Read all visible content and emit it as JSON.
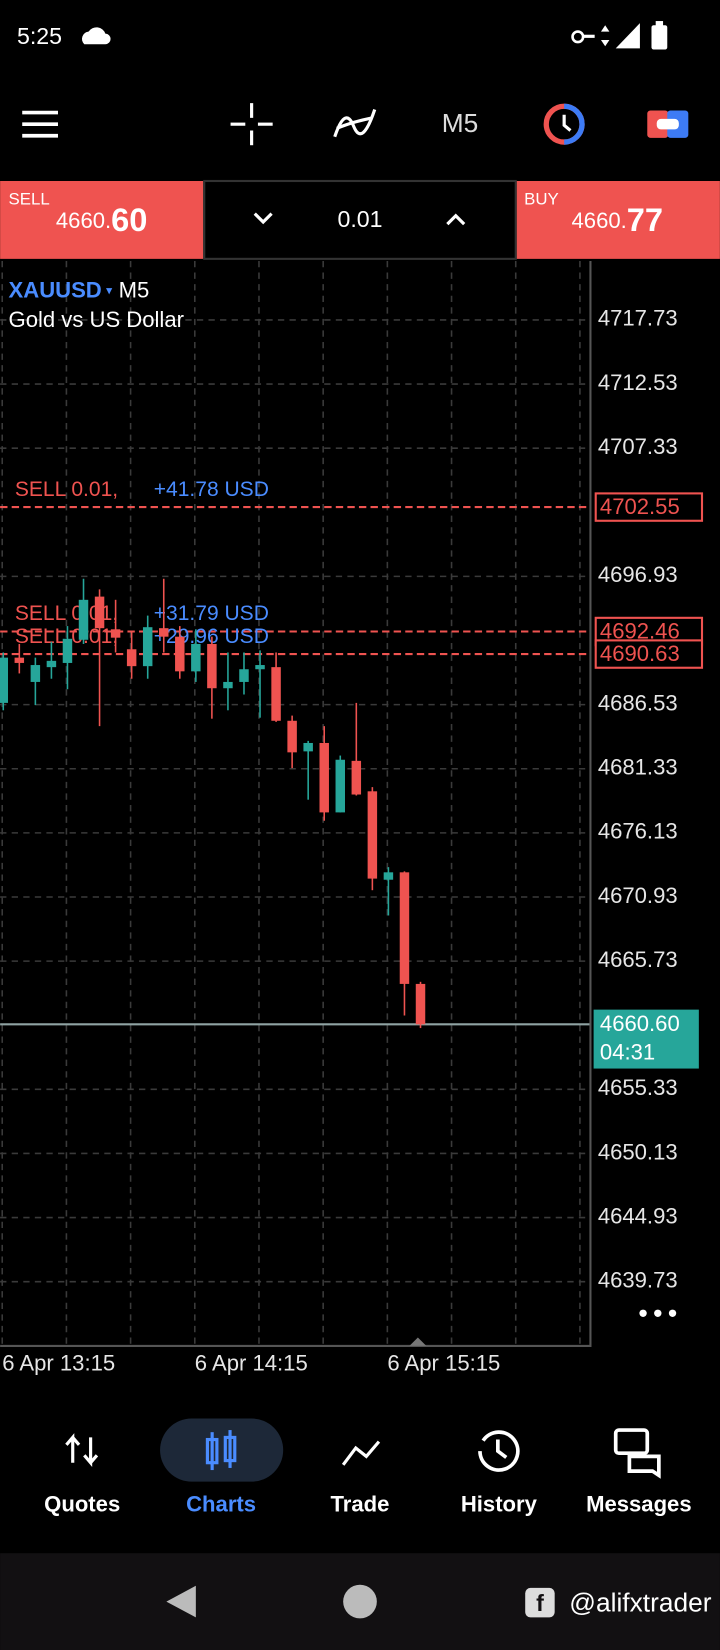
{
  "status_bar": {
    "time": "5:25"
  },
  "toolbar": {
    "timeframe": "M5"
  },
  "trade_panel": {
    "sell_label": "SELL",
    "sell_price_main": "4660.",
    "sell_price_big": "60",
    "lot": "0.01",
    "buy_label": "BUY",
    "buy_price_main": "4660.",
    "buy_price_big": "77"
  },
  "chart_data": {
    "type": "candlestick",
    "symbol": "XAUUSD",
    "timeframe": "M5",
    "description": "Gold vs US Dollar",
    "categories": [
      "6 Apr 13:15",
      null,
      null,
      null,
      null,
      null,
      null,
      null,
      null,
      null,
      null,
      null,
      "6 Apr 14:15",
      null,
      null,
      null,
      null,
      null,
      null,
      null,
      null,
      null,
      null,
      null,
      "6 Apr 15:15",
      null,
      null
    ],
    "open": [
      4686.67,
      4690.34,
      4688.37,
      4689.57,
      4689.91,
      4691.79,
      4695.29,
      4692.64,
      4691.02,
      4689.65,
      4692.73,
      4692.04,
      4689.23,
      4691.45,
      4687.86,
      4688.37,
      4689.4,
      4689.57,
      4685.22,
      4682.74,
      4683.42,
      4677.79,
      4681.97,
      4679.5,
      4672.33,
      4672.93,
      4663.88
    ],
    "high": [
      4690.76,
      4691.45,
      4690.34,
      4691.62,
      4692.9,
      4696.74,
      4695.88,
      4695.03,
      4692.47,
      4693.75,
      4696.74,
      4692.9,
      4692.64,
      4692.04,
      4690.76,
      4690.76,
      4690.93,
      4690.76,
      4685.64,
      4683.59,
      4684.79,
      4682.4,
      4686.67,
      4679.84,
      4673.35,
      4673.01,
      4664.05
    ],
    "low": [
      4686.07,
      4689.06,
      4686.5,
      4688.63,
      4687.78,
      4691.45,
      4684.79,
      4690.76,
      4688.63,
      4688.63,
      4690.76,
      4688.63,
      4688.37,
      4685.39,
      4686.07,
      4687.35,
      4685.47,
      4685.13,
      4681.38,
      4678.82,
      4677.11,
      4677.79,
      4679.16,
      4671.48,
      4669.43,
      4661.32,
      4660.3
    ],
    "close": [
      4690.34,
      4689.91,
      4689.74,
      4690.08,
      4691.87,
      4695.03,
      4692.73,
      4691.96,
      4689.65,
      4692.81,
      4692.04,
      4689.23,
      4691.45,
      4687.86,
      4688.37,
      4689.4,
      4689.74,
      4685.22,
      4682.66,
      4683.42,
      4677.79,
      4682.06,
      4679.24,
      4672.42,
      4672.93,
      4663.88,
      4660.6
    ],
    "up_color": "#26a69a",
    "down_color": "#ef5350",
    "ylim": [
      4634.61,
      4722.51
    ],
    "yticks": [
      4717.73,
      4712.53,
      4707.33,
      4696.93,
      4686.53,
      4681.33,
      4676.13,
      4670.93,
      4665.73,
      4655.33,
      4650.13,
      4644.93,
      4639.73
    ],
    "grid": true,
    "last_price": 4660.6,
    "last_price_label": "4660.60",
    "countdown": "04:31",
    "orders": [
      {
        "side_label": "SELL 0.01,",
        "price": 4702.55,
        "profit": "+41.78 USD"
      },
      {
        "side_label": "SELL 0.01,",
        "price": 4692.46,
        "profit": "+31.79 USD"
      },
      {
        "side_label": "SELL 0.01,",
        "price": 4690.63,
        "profit": "+29.96 USD"
      }
    ]
  },
  "bottom_nav": {
    "items": [
      "Quotes",
      "Charts",
      "Trade",
      "History",
      "Messages"
    ],
    "active": "Charts"
  },
  "watermark": "@alifxtrader"
}
